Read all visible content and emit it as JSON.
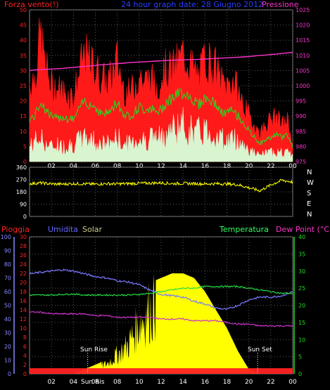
{
  "colors": {
    "background": "#000000",
    "wind_max": "#ff1a1a",
    "wind_avg": "#22dd22",
    "wind_min": "#d8f5d0",
    "pressure": "#ff33cc",
    "direction": "#ffff00",
    "rain": "#ff2222",
    "humidity": "#7777ff",
    "solar": "#ffff00",
    "temperature": "#22dd44",
    "dewpoint": "#cc33cc",
    "title": "#2a3fff",
    "humidity_label": "#6666ff",
    "solar_label": "#cccc88",
    "temp_label": "#33ff66",
    "dew_label": "#ff33cc",
    "rain_axis": "#ff2222",
    "humidity_axis": "#8888ff",
    "temp_axis": "#22dd22",
    "dir_axis": "#ffffff"
  },
  "chart_data": [
    {
      "type": "line",
      "title": "24 hour graph date: 28 Giugno 2012",
      "left_label": "Forza vento(!)",
      "right_label": "Pressione",
      "x_ticks": [
        "02",
        "04",
        "06",
        "08",
        "10",
        "12",
        "14",
        "16",
        "18",
        "20",
        "22",
        "00"
      ],
      "y_left_ticks": [
        "0",
        "5",
        "10",
        "15",
        "20",
        "25",
        "30",
        "35",
        "40",
        "45",
        "50"
      ],
      "y_right_ticks": [
        "975",
        "980",
        "985",
        "990",
        "995",
        "1000",
        "1005",
        "1010",
        "1015",
        "1020",
        "1025"
      ],
      "ylim_left": [
        0,
        50
      ],
      "ylim_right": [
        975,
        1025
      ],
      "x_hours": [
        0,
        0.5,
        1,
        1.5,
        2,
        2.5,
        3,
        3.5,
        4,
        4.5,
        5,
        5.5,
        6,
        6.5,
        7,
        7.5,
        8,
        8.5,
        9,
        9.5,
        10,
        10.5,
        11,
        11.5,
        12,
        12.5,
        13,
        13.5,
        14,
        14.5,
        15,
        15.5,
        16,
        16.5,
        17,
        17.5,
        18,
        18.5,
        19,
        19.5,
        20,
        20.5,
        21,
        21.5,
        22,
        22.5,
        23,
        23.5,
        24
      ],
      "series": [
        {
          "name": "",
          "values": [
            28,
            30,
            45,
            33,
            27,
            26,
            25,
            24,
            23,
            31,
            38,
            35,
            33,
            30,
            28,
            30,
            36,
            27,
            24,
            26,
            31,
            28,
            30,
            26,
            30,
            33,
            32,
            35,
            38,
            36,
            32,
            30,
            37,
            35,
            33,
            28,
            27,
            29,
            25,
            20,
            16,
            13,
            10,
            13,
            15,
            16,
            13,
            15,
            6
          ]
        },
        {
          "name": "",
          "values": [
            14,
            15,
            20,
            17,
            15,
            14,
            15,
            14,
            14,
            17,
            20,
            19,
            18,
            16,
            16,
            17,
            20,
            16,
            15,
            16,
            18,
            17,
            18,
            16,
            17,
            20,
            21,
            22,
            23,
            22,
            20,
            19,
            21,
            20,
            19,
            16,
            16,
            17,
            15,
            13,
            10,
            8,
            6,
            7,
            8,
            9,
            8,
            9,
            5
          ]
        },
        {
          "name": "",
          "values": [
            5,
            7,
            8,
            6,
            5,
            6,
            5,
            6,
            6,
            7,
            8,
            8,
            7,
            6,
            6,
            7,
            8,
            6,
            6,
            7,
            8,
            7,
            9,
            8,
            8,
            10,
            11,
            12,
            12,
            11,
            10,
            10,
            11,
            10,
            9,
            8,
            7,
            8,
            7,
            6,
            4,
            3,
            2,
            3,
            3,
            4,
            3,
            3,
            2
          ]
        },
        {
          "name": "Pressione",
          "values": [
            1005,
            1005.2,
            1005.3,
            1005.4,
            1005.5,
            1005.6,
            1005.7,
            1005.9,
            1006,
            1006.2,
            1006.4,
            1006.5,
            1006.7,
            1006.9,
            1007,
            1007.2,
            1007.3,
            1007.4,
            1007.6,
            1007.7,
            1007.8,
            1007.9,
            1008,
            1008.1,
            1008.2,
            1008.3,
            1008.4,
            1008.5,
            1008.5,
            1008.6,
            1008.6,
            1008.7,
            1008.8,
            1008.9,
            1009,
            1009.1,
            1009.2,
            1009.3,
            1009.4,
            1009.5,
            1009.6,
            1009.8,
            1010,
            1010.1,
            1010.3,
            1010.4,
            1010.6,
            1010.8,
            1011
          ]
        }
      ]
    },
    {
      "type": "line",
      "title": "",
      "y_left_ticks": [
        "360",
        "270",
        "180",
        "90",
        "0"
      ],
      "ylim": [
        0,
        360
      ],
      "right_labels": [
        "N",
        "W",
        "S",
        "E",
        "N"
      ],
      "x_hours": [
        0,
        1,
        2,
        3,
        4,
        5,
        6,
        7,
        8,
        9,
        10,
        11,
        12,
        13,
        14,
        15,
        16,
        17,
        18,
        19,
        20,
        21,
        22,
        23,
        24
      ],
      "series": [
        {
          "name": "",
          "values": [
            240,
            245,
            238,
            236,
            240,
            238,
            236,
            240,
            238,
            240,
            242,
            244,
            246,
            240,
            242,
            240,
            238,
            240,
            238,
            232,
            210,
            188,
            230,
            265,
            252
          ]
        }
      ]
    },
    {
      "type": "area",
      "labels": {
        "rain": "Pioggia",
        "humidity": "Umidita",
        "solar": "Solar",
        "temperature": "Temperatura",
        "dewpoint": "Dew Point (°C)"
      },
      "annotations": [
        "Sun Rise",
        "Sun Ris",
        "Sun Set"
      ],
      "x_ticks": [
        "02",
        "04",
        "06",
        "08",
        "10",
        "12",
        "14",
        "16",
        "18",
        "20",
        "22",
        "00"
      ],
      "y_humidity_ticks": [
        "0",
        "10",
        "20",
        "30",
        "40",
        "50",
        "60",
        "70",
        "80",
        "90",
        "100"
      ],
      "y_rain_ticks": [
        "0",
        "2",
        "4",
        "6",
        "8",
        "10",
        "12",
        "14",
        "16",
        "18",
        "20",
        "22",
        "24",
        "26",
        "28",
        "30"
      ],
      "y_temp_ticks": [
        "0",
        "5",
        "10",
        "15",
        "20",
        "25",
        "30",
        "35",
        "40"
      ],
      "x_hours": [
        0,
        1,
        2,
        3,
        4,
        5,
        6,
        7,
        8,
        9,
        10,
        11,
        12,
        13,
        14,
        15,
        16,
        17,
        18,
        19,
        20,
        21,
        22,
        23,
        24
      ],
      "series": [
        {
          "name": "Pioggia",
          "values": [
            0,
            0,
            0,
            0,
            0,
            0,
            0,
            0,
            0,
            0,
            0,
            0,
            0,
            0,
            0,
            0,
            0,
            0,
            0,
            0,
            0,
            0,
            0,
            0,
            0
          ]
        },
        {
          "name": "Umidita",
          "values": [
            73,
            74,
            75,
            76,
            75,
            73,
            71,
            70,
            68,
            67,
            65,
            61,
            58,
            57,
            56,
            53,
            51,
            48,
            47,
            50,
            54,
            56,
            56,
            57,
            60
          ]
        },
        {
          "name": "Solar",
          "values": [
            0,
            0,
            0,
            0,
            0,
            1,
            2,
            3,
            6,
            9,
            16,
            20,
            21,
            22,
            22,
            21,
            18,
            14,
            10,
            5,
            1,
            0,
            0,
            0,
            0
          ]
        },
        {
          "name": "Temperatura",
          "values": [
            23,
            23,
            23,
            23.2,
            23.3,
            23,
            23,
            23,
            23,
            23,
            23.2,
            23.5,
            24,
            24.5,
            25,
            25,
            25.5,
            25.5,
            25.5,
            25.5,
            25,
            24.5,
            24,
            23.5,
            23.5
          ]
        },
        {
          "name": "Dew Point (°C)",
          "values": [
            18,
            18,
            17.5,
            17.5,
            17.5,
            17.5,
            17,
            17,
            16.5,
            16.5,
            16.5,
            16.5,
            16,
            16,
            16,
            15.5,
            15.5,
            15.5,
            15,
            14.5,
            14.5,
            14,
            14,
            14,
            14
          ]
        }
      ]
    }
  ]
}
